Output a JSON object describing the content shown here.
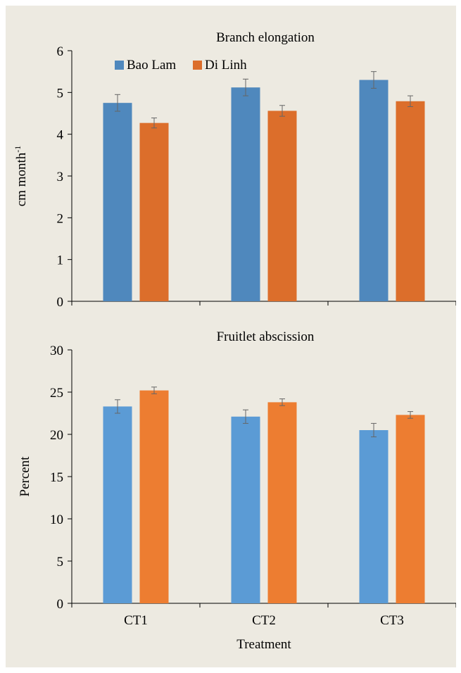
{
  "chart_data": [
    {
      "type": "bar",
      "title": "Branch elongation",
      "ylabel": "cm month",
      "ylabel_sup": "-1",
      "xlabel": "",
      "categories": [
        "CT1",
        "CT2",
        "CT3"
      ],
      "ylim": [
        0,
        6
      ],
      "yticks": [
        0,
        1,
        2,
        3,
        4,
        5,
        6
      ],
      "legend": {
        "position": "top-left"
      },
      "series": [
        {
          "name": "Bao Lam",
          "color": "#4f88bd",
          "values": [
            4.75,
            5.12,
            5.3
          ],
          "errors": [
            0.2,
            0.2,
            0.2
          ]
        },
        {
          "name": "Di Linh",
          "color": "#dc6e2b",
          "values": [
            4.27,
            4.56,
            4.79
          ],
          "errors": [
            0.12,
            0.13,
            0.13
          ]
        }
      ]
    },
    {
      "type": "bar",
      "title": "Fruitlet abscission",
      "ylabel": "Percent",
      "xlabel": "Treatment",
      "categories": [
        "CT1",
        "CT2",
        "CT3"
      ],
      "ylim": [
        0,
        30
      ],
      "yticks": [
        0,
        5,
        10,
        15,
        20,
        25,
        30
      ],
      "series": [
        {
          "name": "Bao Lam",
          "color": "#5b9bd5",
          "values": [
            23.3,
            22.1,
            20.5
          ],
          "errors": [
            0.8,
            0.8,
            0.8
          ]
        },
        {
          "name": "Di Linh",
          "color": "#ed7d31",
          "values": [
            25.2,
            23.8,
            22.3
          ],
          "errors": [
            0.4,
            0.4,
            0.4
          ]
        }
      ]
    }
  ]
}
